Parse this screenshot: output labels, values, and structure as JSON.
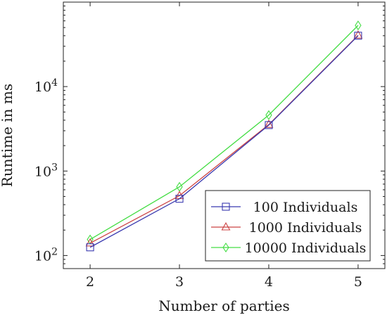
{
  "chart_data": {
    "type": "line",
    "title": "",
    "xlabel": "Number of parties",
    "ylabel": "Runtime in ms",
    "x": [
      2,
      3,
      4,
      5
    ],
    "xlim": [
      1.7,
      5.3
    ],
    "ylim": [
      70,
      100000
    ],
    "yscale": "log",
    "xticks": [
      2,
      3,
      4,
      5
    ],
    "xtick_labels": [
      "2",
      "3",
      "4",
      "5"
    ],
    "yticks": [
      100,
      1000,
      10000
    ],
    "ytick_labels": [
      {
        "base": "10",
        "exp": "2"
      },
      {
        "base": "10",
        "exp": "3"
      },
      {
        "base": "10",
        "exp": "4"
      }
    ],
    "grid": false,
    "legend_position": "bottom-right",
    "series": [
      {
        "name": "100 Individuals",
        "color": "#3b3bb0",
        "marker": "square",
        "values": [
          125,
          470,
          3500,
          40000
        ]
      },
      {
        "name": "1000 Individuals",
        "color": "#cc4444",
        "marker": "triangle",
        "values": [
          140,
          510,
          3550,
          40500
        ]
      },
      {
        "name": "10000 Individuals",
        "color": "#44dd44",
        "marker": "diamond",
        "values": [
          155,
          650,
          4600,
          53000
        ]
      }
    ]
  }
}
